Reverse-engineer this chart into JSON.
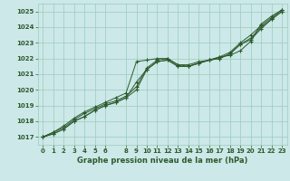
{
  "title": "Graphe pression niveau de la mer (hPa)",
  "bg_color": "#cce8e8",
  "grid_color": "#99ccbb",
  "line_color": "#2d5a2d",
  "marker_color": "#2d5a2d",
  "xlim": [
    -0.5,
    23.5
  ],
  "ylim": [
    1016.5,
    1025.5
  ],
  "xticks": [
    0,
    1,
    2,
    3,
    4,
    5,
    6,
    8,
    9,
    10,
    11,
    12,
    13,
    14,
    15,
    16,
    17,
    18,
    19,
    20,
    21,
    22,
    23
  ],
  "yticks": [
    1017,
    1018,
    1019,
    1020,
    1021,
    1022,
    1023,
    1024,
    1025
  ],
  "series": [
    [
      1017.0,
      1017.3,
      1017.7,
      1018.2,
      1018.6,
      1018.9,
      1019.2,
      1019.5,
      1019.8,
      1021.8,
      1021.9,
      1022.0,
      1022.0,
      1021.6,
      1021.6,
      1021.8,
      1021.9,
      1022.1,
      1022.2,
      1022.5,
      1023.1,
      1024.2,
      1024.7,
      1025.1
    ],
    [
      1017.0,
      1017.3,
      1017.6,
      1018.1,
      1018.5,
      1018.8,
      1019.1,
      1019.3,
      1019.6,
      1020.2,
      1021.4,
      1021.9,
      1022.0,
      1021.6,
      1021.5,
      1021.7,
      1021.9,
      1022.1,
      1022.4,
      1023.0,
      1023.5,
      1024.1,
      1024.6,
      1025.1
    ],
    [
      1017.0,
      1017.2,
      1017.5,
      1018.0,
      1018.3,
      1018.7,
      1019.0,
      1019.2,
      1019.5,
      1020.0,
      1021.3,
      1021.8,
      1021.9,
      1021.5,
      1021.5,
      1021.7,
      1021.9,
      1022.0,
      1022.3,
      1022.9,
      1023.3,
      1024.0,
      1024.5,
      1025.0
    ],
    [
      1017.0,
      1017.2,
      1017.5,
      1018.0,
      1018.3,
      1018.7,
      1019.0,
      1019.2,
      1019.5,
      1020.5,
      1021.3,
      1021.8,
      1021.9,
      1021.5,
      1021.5,
      1021.7,
      1021.9,
      1022.0,
      1022.3,
      1022.9,
      1023.2,
      1023.9,
      1024.5,
      1025.0
    ]
  ]
}
